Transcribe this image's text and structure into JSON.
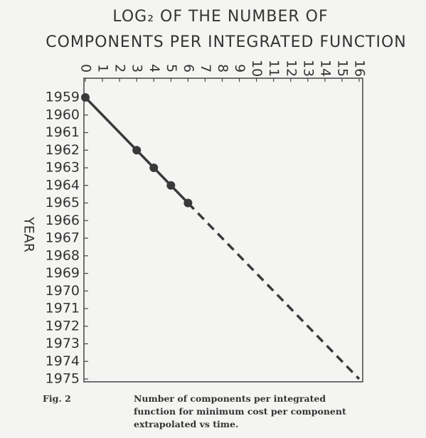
{
  "chart_data": {
    "type": "line",
    "title_lines": [
      "LOG₂ OF THE NUMBER OF",
      "COMPONENTS PER INTEGRATED FUNCTION"
    ],
    "ylabel": "YEAR",
    "xlim": [
      0,
      16
    ],
    "xticks": [
      0,
      1,
      2,
      3,
      4,
      5,
      6,
      7,
      8,
      9,
      10,
      11,
      12,
      13,
      14,
      15,
      16
    ],
    "ylim": [
      1959,
      1975
    ],
    "yticks": [
      1959,
      1960,
      1961,
      1962,
      1963,
      1964,
      1965,
      1966,
      1967,
      1968,
      1969,
      1970,
      1971,
      1972,
      1973,
      1974,
      1975
    ],
    "y_inverted": true,
    "grid": false,
    "series": [
      {
        "x": [
          0,
          3,
          4,
          5,
          6
        ],
        "values": [
          1959,
          1962,
          1963,
          1964,
          1965
        ],
        "color": "#3a3a3a",
        "style": "solid",
        "markers": true
      },
      {
        "x": [
          6,
          16
        ],
        "values": [
          1965,
          1975
        ],
        "color": "#3a3a3a",
        "style": "dashed",
        "markers": false
      }
    ],
    "figure_label": "Fig. 2",
    "caption_lines": [
      "Number of components per integrated",
      "function for minimum cost per component",
      "extrapolated vs time."
    ]
  }
}
